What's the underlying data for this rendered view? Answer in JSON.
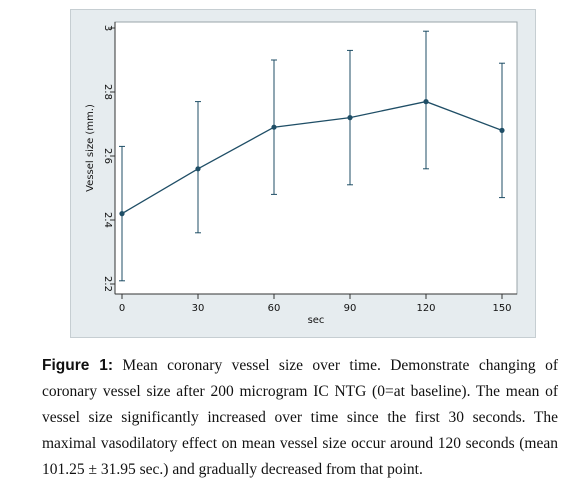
{
  "chart_data": {
    "type": "line",
    "title": "",
    "xlabel": "sec",
    "ylabel": "Vessel size (mm.)",
    "x": [
      0,
      30,
      60,
      90,
      120,
      150
    ],
    "xticks": [
      "0",
      "30",
      "60",
      "90",
      "120",
      "150"
    ],
    "xlim": [
      0,
      150
    ],
    "ylim": [
      2.2,
      3.0
    ],
    "yticks": [
      "2.2",
      "2.4",
      "2.6",
      "2.8",
      "3"
    ],
    "grid": false,
    "series": [
      {
        "values": [
          2.42,
          2.56,
          2.69,
          2.72,
          2.77,
          2.68
        ],
        "error_low": [
          2.21,
          2.36,
          2.48,
          2.51,
          2.56,
          2.47
        ],
        "error_high": [
          2.63,
          2.77,
          2.9,
          2.93,
          2.99,
          2.89
        ]
      }
    ],
    "colors": {
      "line": "#1f4e66",
      "panel": "#e6ecef",
      "plot": "#ffffff"
    }
  },
  "caption": {
    "label": "Figure 1:",
    "text": " Mean coronary vessel size over time. Demonstrate changing of coronary vessel size after 200 microgram IC NTG (0=at baseline). The mean of vessel size significantly increased over time since the first 30 seconds. The maximal vasodilatory effect on mean vessel size occur around 120 seconds (mean 101.25 ± 31.95 sec.) and gradually decreased from that point."
  }
}
